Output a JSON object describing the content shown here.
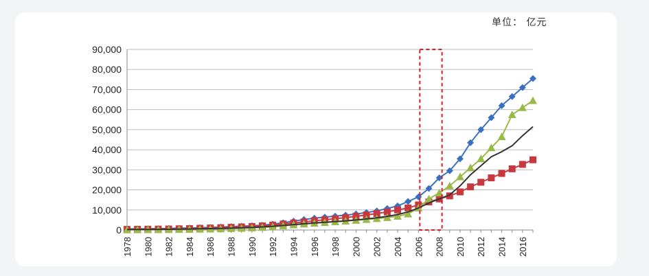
{
  "unit_label": "单位： 亿元",
  "chart_data": {
    "type": "line",
    "title": "",
    "xlabel": "",
    "ylabel": "",
    "x": [
      1978,
      1979,
      1980,
      1981,
      1982,
      1983,
      1984,
      1985,
      1986,
      1987,
      1988,
      1989,
      1990,
      1991,
      1992,
      1993,
      1994,
      1995,
      1996,
      1997,
      1998,
      1999,
      2000,
      2001,
      2002,
      2003,
      2004,
      2005,
      2006,
      2007,
      2008,
      2009,
      2010,
      2011,
      2012,
      2013,
      2014,
      2015,
      2016,
      2017
    ],
    "x_tick_labels": [
      "1978",
      "1980",
      "1982",
      "1984",
      "1986",
      "1988",
      "1990",
      "1992",
      "1994",
      "1996",
      "1998",
      "2000",
      "2002",
      "2004",
      "2006",
      "2008",
      "2010",
      "2012",
      "2014",
      "2016"
    ],
    "ylim": [
      0,
      90000
    ],
    "y_tick_labels": [
      "0",
      "10,000",
      "20,000",
      "30,000",
      "40,000",
      "50,000",
      "60,000",
      "70,000",
      "80,000",
      "90,000"
    ],
    "grid": "horizontal",
    "highlight_range": [
      2006,
      2008
    ],
    "series": [
      {
        "color": "#3b6fc0",
        "marker": "diamond",
        "values": [
          500,
          550,
          600,
          700,
          800,
          900,
          1000,
          1150,
          1300,
          1450,
          1700,
          1900,
          2100,
          2400,
          2900,
          3600,
          4400,
          5200,
          5900,
          6400,
          6900,
          7400,
          8000,
          8700,
          9500,
          10700,
          12000,
          14200,
          16500,
          20700,
          26000,
          29500,
          35500,
          43500,
          50000,
          56000,
          62000,
          66500,
          71000,
          75500
        ]
      },
      {
        "color": "#c8393f",
        "marker": "square",
        "values": [
          300,
          350,
          400,
          450,
          500,
          600,
          700,
          850,
          1000,
          1150,
          1350,
          1550,
          1750,
          2050,
          2450,
          3000,
          3500,
          4000,
          4600,
          5100,
          5600,
          6200,
          6800,
          7500,
          8200,
          9000,
          10000,
          11000,
          12500,
          14000,
          15500,
          17000,
          19000,
          21500,
          23800,
          26000,
          28200,
          30500,
          32700,
          35000
        ]
      },
      {
        "color": "#9bb84a",
        "marker": "triangle",
        "values": [
          100,
          120,
          150,
          180,
          220,
          280,
          350,
          430,
          520,
          620,
          730,
          870,
          1050,
          1300,
          1650,
          2100,
          2550,
          3000,
          3400,
          3750,
          4100,
          4450,
          4850,
          5250,
          5700,
          6200,
          6850,
          8000,
          11000,
          15500,
          18500,
          22000,
          26500,
          31000,
          35500,
          41000,
          46500,
          57500,
          61000,
          64500
        ]
      },
      {
        "color": "#333333",
        "marker": "none",
        "values": [
          200,
          230,
          260,
          300,
          350,
          400,
          480,
          580,
          680,
          800,
          950,
          1100,
          1300,
          1550,
          1850,
          2250,
          2700,
          3100,
          3500,
          3850,
          4200,
          4550,
          5000,
          5500,
          6100,
          6800,
          7700,
          9000,
          11000,
          13500,
          15500,
          17500,
          22000,
          27500,
          32000,
          36500,
          39000,
          42000,
          47000,
          51500
        ]
      }
    ]
  }
}
